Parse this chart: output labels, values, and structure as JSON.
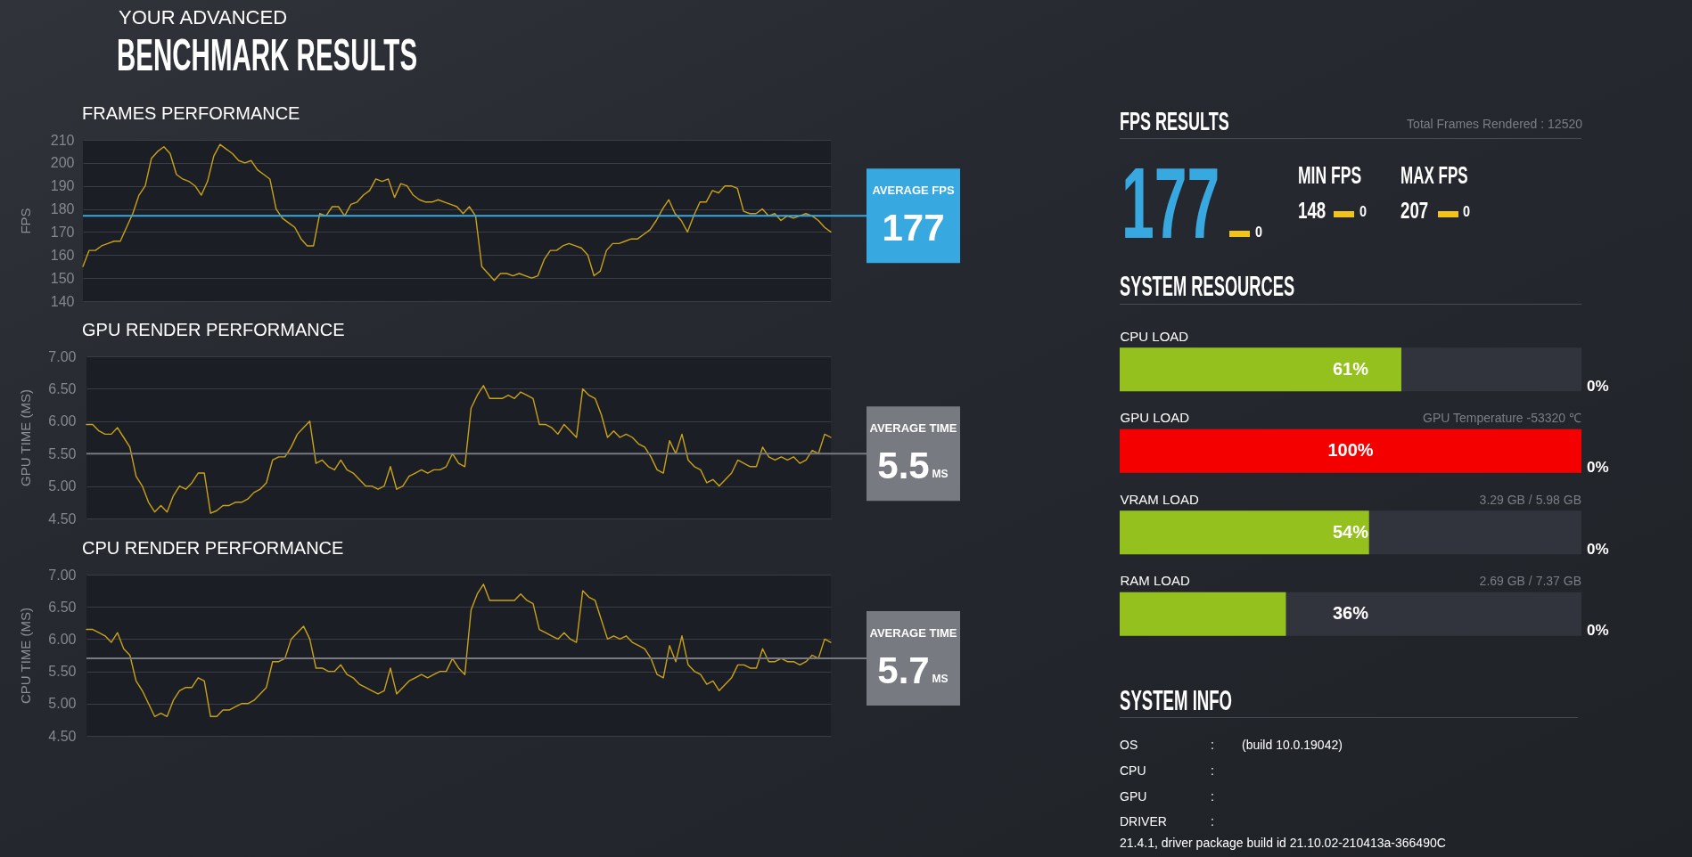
{
  "chart_data": [
    {
      "type": "other",
      "title": "YOUR ADVANCED",
      "subtitle": "BENCHMARK RESULTS"
    },
    {
      "type": "line",
      "title": "FRAMES PERFORMANCE",
      "ylabel": "FPS",
      "categories": [
        null,
        null,
        null,
        null,
        null,
        null,
        null,
        null,
        null,
        null,
        null,
        null,
        null,
        null,
        null,
        null,
        null,
        null,
        null,
        null,
        null,
        null,
        null,
        null,
        null,
        null,
        null,
        null,
        null,
        null,
        null,
        null,
        null,
        null,
        null,
        null,
        null,
        null,
        null,
        null,
        null,
        null,
        null,
        null,
        null,
        null,
        null,
        null,
        null,
        null,
        null,
        null,
        null,
        null,
        null,
        null,
        null,
        null,
        null,
        null,
        null,
        null,
        null,
        null,
        null,
        null,
        null,
        null,
        null,
        null,
        null,
        null,
        null,
        null,
        null,
        null,
        null,
        null,
        null,
        null,
        null,
        null,
        null,
        null,
        null,
        null,
        null,
        null,
        null,
        null,
        null,
        null,
        null,
        null,
        null,
        null,
        null,
        null,
        null,
        null,
        null,
        null,
        null,
        null,
        null,
        null,
        null,
        null,
        null,
        null,
        null,
        null,
        null,
        null,
        null,
        null,
        null,
        null,
        null,
        null,
        null
      ],
      "series": [
        {
          "color": "#c9a21a",
          "values": [
            155,
            162,
            162,
            164,
            165,
            166,
            166,
            172,
            178,
            186,
            190,
            202,
            205,
            207,
            204,
            195,
            193,
            192,
            190,
            186,
            192,
            203,
            208,
            206,
            204,
            201,
            200,
            201,
            197,
            195,
            193,
            180,
            176,
            174,
            172,
            167,
            164,
            164,
            178,
            177,
            181,
            181,
            177,
            182,
            183,
            186,
            188,
            193,
            192,
            193,
            185,
            191,
            190,
            186,
            184,
            183,
            183,
            184,
            183,
            182,
            181,
            178,
            181,
            177,
            155,
            152,
            149,
            152,
            152,
            151,
            152,
            151,
            150,
            151,
            158,
            162,
            162,
            164,
            165,
            164,
            163,
            160,
            151,
            153,
            162,
            165,
            165,
            166,
            167,
            167,
            169,
            171,
            175,
            180,
            184,
            178,
            175,
            170,
            177,
            183,
            183,
            188,
            187,
            190,
            190,
            189,
            179,
            178,
            178,
            180,
            177,
            178,
            175,
            177,
            176,
            177,
            178,
            177,
            175,
            172,
            170
          ]
        }
      ],
      "ylim": [
        140,
        210
      ],
      "yticks": [
        140,
        150,
        160,
        170,
        180,
        190,
        200,
        210
      ],
      "grid": "y",
      "ref_lines": [
        {
          "axis": "y",
          "value": 177,
          "label": "AVERAGE FPS",
          "color": "#38a8e0"
        }
      ],
      "annotations": [
        "177"
      ]
    },
    {
      "type": "line",
      "title": "GPU RENDER PERFORMANCE",
      "ylabel": "GPU TIME (MS)",
      "categories": [
        null,
        null,
        null,
        null,
        null,
        null,
        null,
        null,
        null,
        null,
        null,
        null,
        null,
        null,
        null,
        null,
        null,
        null,
        null,
        null,
        null,
        null,
        null,
        null,
        null,
        null,
        null,
        null,
        null,
        null,
        null,
        null,
        null,
        null,
        null,
        null,
        null,
        null,
        null,
        null,
        null,
        null,
        null,
        null,
        null,
        null,
        null,
        null,
        null,
        null,
        null,
        null,
        null,
        null,
        null,
        null,
        null,
        null,
        null,
        null,
        null,
        null,
        null,
        null,
        null,
        null,
        null,
        null,
        null,
        null,
        null,
        null,
        null,
        null,
        null,
        null,
        null,
        null,
        null,
        null,
        null,
        null,
        null,
        null,
        null,
        null,
        null,
        null,
        null,
        null,
        null,
        null,
        null,
        null,
        null,
        null,
        null,
        null,
        null,
        null,
        null,
        null,
        null,
        null,
        null,
        null,
        null,
        null,
        null,
        null,
        null,
        null,
        null,
        null,
        null,
        null,
        null,
        null,
        null,
        null,
        null
      ],
      "series": [
        {
          "color": "#c9a21a",
          "values": [
            5.95,
            5.95,
            5.85,
            5.8,
            5.8,
            5.9,
            5.75,
            5.6,
            5.15,
            5.0,
            4.75,
            4.6,
            4.7,
            4.6,
            4.85,
            5.0,
            4.95,
            5.05,
            5.2,
            5.2,
            4.58,
            4.62,
            4.7,
            4.7,
            4.75,
            4.75,
            4.8,
            4.9,
            4.95,
            5.05,
            5.4,
            5.45,
            5.45,
            5.6,
            5.8,
            5.9,
            6.0,
            5.35,
            5.4,
            5.3,
            5.25,
            5.4,
            5.25,
            5.2,
            5.1,
            5.0,
            5.0,
            4.95,
            5.0,
            5.3,
            4.95,
            5.0,
            5.15,
            5.2,
            5.25,
            5.2,
            5.25,
            5.25,
            5.3,
            5.5,
            5.35,
            5.3,
            6.2,
            6.4,
            6.55,
            6.35,
            6.35,
            6.35,
            6.4,
            6.35,
            6.45,
            6.4,
            6.35,
            5.95,
            5.95,
            5.9,
            5.8,
            5.95,
            5.85,
            5.75,
            6.5,
            6.4,
            6.35,
            6.1,
            5.75,
            5.85,
            5.75,
            5.8,
            5.75,
            5.65,
            5.6,
            5.45,
            5.25,
            5.2,
            5.7,
            5.5,
            5.8,
            5.4,
            5.3,
            5.25,
            5.05,
            5.1,
            5.0,
            5.1,
            5.2,
            5.4,
            5.35,
            5.3,
            5.3,
            5.6,
            5.45,
            5.4,
            5.45,
            5.4,
            5.45,
            5.35,
            5.4,
            5.55,
            5.5,
            5.8,
            5.75
          ]
        }
      ],
      "ylim": [
        4.5,
        7
      ],
      "yticks": [
        {
          "value": 4.5,
          "label": "4.50"
        },
        {
          "value": 5,
          "label": "5.00"
        },
        {
          "value": 5.5,
          "label": "5.50"
        },
        {
          "value": 6,
          "label": "6.00"
        },
        {
          "value": 6.5,
          "label": "6.50"
        },
        {
          "value": 7,
          "label": "7.00"
        }
      ],
      "grid": "y",
      "ref_lines": [
        {
          "axis": "y",
          "value": 5.5,
          "label": "AVERAGE TIME",
          "color": "#777a80"
        }
      ],
      "annotations": [
        "5.5",
        "MS"
      ]
    },
    {
      "type": "line",
      "title": "CPU RENDER PERFORMANCE",
      "ylabel": "CPU TIME (MS)",
      "categories": [
        null,
        null,
        null,
        null,
        null,
        null,
        null,
        null,
        null,
        null,
        null,
        null,
        null,
        null,
        null,
        null,
        null,
        null,
        null,
        null,
        null,
        null,
        null,
        null,
        null,
        null,
        null,
        null,
        null,
        null,
        null,
        null,
        null,
        null,
        null,
        null,
        null,
        null,
        null,
        null,
        null,
        null,
        null,
        null,
        null,
        null,
        null,
        null,
        null,
        null,
        null,
        null,
        null,
        null,
        null,
        null,
        null,
        null,
        null,
        null,
        null,
        null,
        null,
        null,
        null,
        null,
        null,
        null,
        null,
        null,
        null,
        null,
        null,
        null,
        null,
        null,
        null,
        null,
        null,
        null,
        null,
        null,
        null,
        null,
        null,
        null,
        null,
        null,
        null,
        null,
        null,
        null,
        null,
        null,
        null,
        null,
        null,
        null,
        null,
        null,
        null,
        null,
        null,
        null,
        null,
        null,
        null,
        null,
        null,
        null,
        null,
        null,
        null,
        null,
        null,
        null,
        null,
        null,
        null,
        null,
        null
      ],
      "series": [
        {
          "color": "#c9a21a",
          "values": [
            6.15,
            6.15,
            6.1,
            6.05,
            5.95,
            6.1,
            5.85,
            5.75,
            5.35,
            5.2,
            5.0,
            4.8,
            4.85,
            4.8,
            5.05,
            5.2,
            5.25,
            5.25,
            5.4,
            5.35,
            4.8,
            4.8,
            4.9,
            4.9,
            4.95,
            5.0,
            5.0,
            5.05,
            5.15,
            5.25,
            5.65,
            5.65,
            5.7,
            6.0,
            6.1,
            6.2,
            6.0,
            5.55,
            5.55,
            5.5,
            5.5,
            5.6,
            5.45,
            5.4,
            5.3,
            5.25,
            5.2,
            5.15,
            5.2,
            5.55,
            5.15,
            5.25,
            5.35,
            5.4,
            5.45,
            5.4,
            5.45,
            5.5,
            5.5,
            5.7,
            5.55,
            5.45,
            6.45,
            6.7,
            6.85,
            6.6,
            6.6,
            6.6,
            6.6,
            6.6,
            6.7,
            6.6,
            6.55,
            6.15,
            6.1,
            6.05,
            6.0,
            6.1,
            6.0,
            5.95,
            6.75,
            6.65,
            6.6,
            6.3,
            6.0,
            6.05,
            6.0,
            6.05,
            5.95,
            5.9,
            5.85,
            5.7,
            5.45,
            5.4,
            5.9,
            5.65,
            6.05,
            5.6,
            5.5,
            5.45,
            5.3,
            5.35,
            5.2,
            5.3,
            5.4,
            5.6,
            5.6,
            5.55,
            5.55,
            5.85,
            5.65,
            5.65,
            5.7,
            5.65,
            5.65,
            5.6,
            5.65,
            5.75,
            5.7,
            6.0,
            5.95
          ]
        }
      ],
      "ylim": [
        4.5,
        7
      ],
      "yticks": [
        {
          "value": 4.5,
          "label": "4.50"
        },
        {
          "value": 5,
          "label": "5.00"
        },
        {
          "value": 5.5,
          "label": "5.50"
        },
        {
          "value": 6,
          "label": "6.00"
        },
        {
          "value": 6.5,
          "label": "6.50"
        },
        {
          "value": 7,
          "label": "7.00"
        }
      ],
      "grid": "y",
      "ref_lines": [
        {
          "axis": "y",
          "value": 5.7,
          "label": "AVERAGE TIME",
          "color": "#777a80"
        }
      ],
      "annotations": [
        "5.7",
        "MS"
      ]
    },
    {
      "type": "other",
      "title": "FPS RESULTS",
      "annotations": [
        "Total Frames Rendered : 12520",
        "177",
        "0",
        "MIN FPS",
        "148",
        "0",
        "MAX FPS",
        "207",
        "0"
      ]
    },
    {
      "type": "bar",
      "orientation": "horizontal",
      "title": "SYSTEM RESOURCES",
      "categories": [
        "CPU LOAD",
        "GPU LOAD",
        "VRAM LOAD",
        "RAM LOAD"
      ],
      "values": [
        61,
        100,
        54,
        36
      ],
      "colors": [
        "#95c11f",
        "#f50000",
        "#95c11f",
        "#95c11f"
      ],
      "value_labels": [
        "61%",
        "100%",
        "54%",
        "36%"
      ],
      "xlim": [
        0,
        100
      ],
      "tick_labels": "y",
      "annotations": [
        "0%",
        "GPU Temperature -53320 ℃",
        "0%",
        "3.29 GB / 5.98 GB",
        "0%",
        "2.69 GB / 7.37 GB",
        "0%"
      ]
    },
    {
      "type": "other",
      "title": "SYSTEM INFO",
      "annotations": [
        "OS",
        ":",
        "(build 10.0.19042)",
        "CPU",
        ":",
        "GPU",
        ":",
        "DRIVER",
        ":",
        "21.4.1, driver package build id 21.10.02-210413a-366490C"
      ]
    }
  ]
}
